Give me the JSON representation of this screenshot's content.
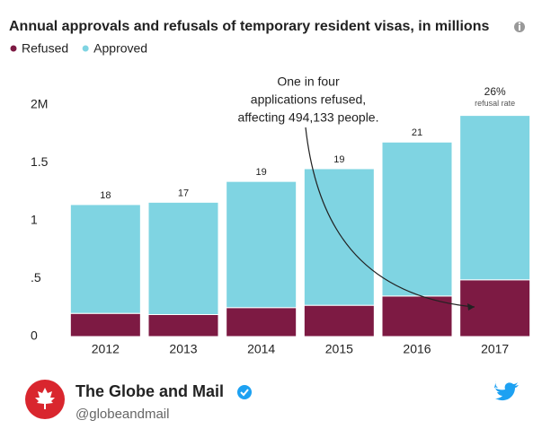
{
  "chart_data": {
    "type": "stacked-bar",
    "title": "Annual approvals and refusals of temporary resident visas, in millions",
    "categories": [
      "2012",
      "2013",
      "2014",
      "2015",
      "2016",
      "2017"
    ],
    "series": [
      {
        "name": "Refused",
        "color": "#7d1a43",
        "values": [
          0.2,
          0.19,
          0.25,
          0.27,
          0.35,
          0.49
        ]
      },
      {
        "name": "Approved",
        "color": "#7fd4e2",
        "values": [
          0.94,
          0.97,
          1.09,
          1.18,
          1.33,
          1.42
        ]
      }
    ],
    "rate_labels": [
      "18",
      "17",
      "19",
      "19",
      "21",
      "26%"
    ],
    "rate_note": "refusal rate",
    "annotation": [
      "One in four",
      "applications refused,",
      "affecting 494,133 people."
    ],
    "ylim": [
      0,
      2.08
    ],
    "yticks": [
      0,
      {
        "value": 0.5,
        "label": ".5"
      },
      1,
      1.5,
      {
        "value": 2,
        "label": "2M"
      }
    ],
    "legend": "top-left"
  },
  "tweet": {
    "name": "The Globe and Mail",
    "handle": "@globeandmail"
  }
}
